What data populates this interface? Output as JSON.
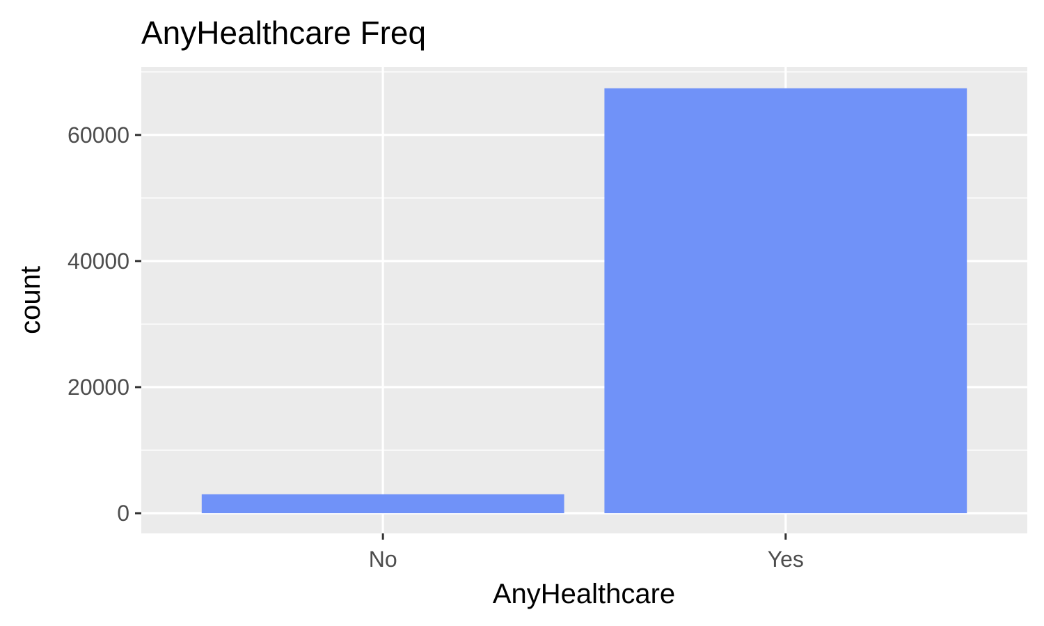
{
  "chart_data": {
    "type": "bar",
    "title": "AnyHealthcare Freq",
    "xlabel": "AnyHealthcare",
    "ylabel": "count",
    "categories": [
      "No",
      "Yes"
    ],
    "values": [
      3000,
      67400
    ],
    "ylim": [
      -3200,
      70800
    ],
    "y_ticks": [
      0,
      20000,
      40000,
      60000
    ],
    "y_tick_labels": [
      "0",
      "20000",
      "40000",
      "60000"
    ],
    "grid": true,
    "legend": "none",
    "colors": {
      "bar": "#7092f8",
      "panel": "#ebebeb",
      "grid": "#ffffff",
      "tick": "#333333",
      "tick_label": "#4d4d4d"
    }
  }
}
